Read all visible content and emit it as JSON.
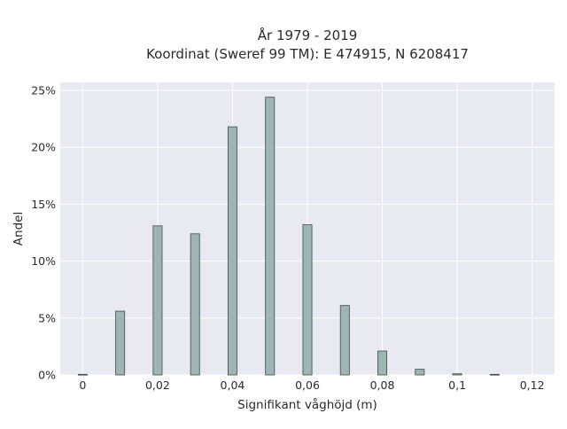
{
  "chart_data": {
    "type": "bar",
    "title_lines": [
      "År 1979 - 2019",
      "Koordinat (Sweref 99 TM): E 474915, N 6208417"
    ],
    "xlabel": "Signifikant våghöjd (m)",
    "ylabel": "Andel",
    "x": [
      0,
      0.01,
      0.02,
      0.03,
      0.04,
      0.05,
      0.06,
      0.07,
      0.08,
      0.09,
      0.1,
      0.11
    ],
    "values": [
      0.05,
      5.6,
      13.1,
      12.4,
      21.8,
      24.4,
      13.2,
      6.1,
      2.1,
      0.5,
      0.1,
      0.05
    ],
    "xlim": [
      -0.006,
      0.126
    ],
    "ylim": [
      0,
      25.7
    ],
    "x_ticks": [
      0,
      0.02,
      0.04,
      0.06,
      0.08,
      0.1,
      0.12
    ],
    "x_tick_labels": [
      "0",
      "0,02",
      "0,04",
      "0,06",
      "0,08",
      "0,1",
      "0,12"
    ],
    "y_ticks": [
      0,
      5,
      10,
      15,
      20,
      25
    ],
    "y_tick_labels": [
      "0%",
      "5%",
      "10%",
      "15%",
      "20%",
      "25%"
    ],
    "bar_color": "#9db5b3",
    "bar_edge_color": "#3d4a4a",
    "plot_background": "#e8e9f1",
    "grid": true
  }
}
